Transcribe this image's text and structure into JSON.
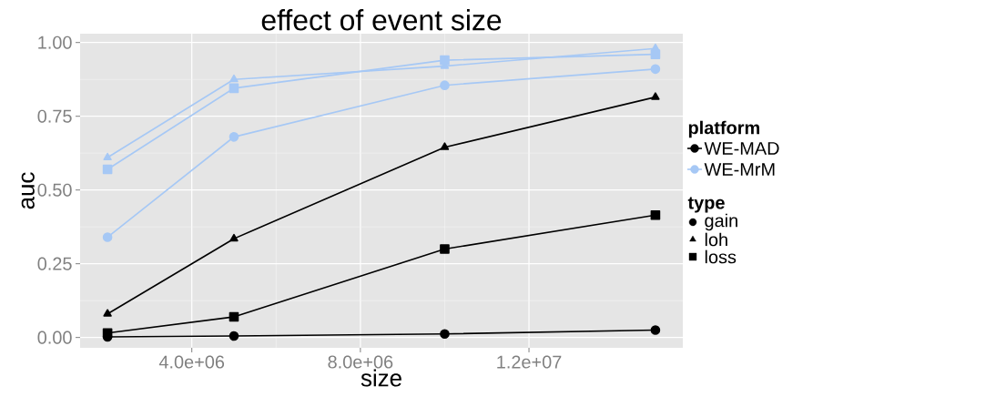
{
  "chart_data": {
    "type": "line",
    "title": "effect of event size",
    "xlabel": "size",
    "ylabel": "auc",
    "legend_title": "platform",
    "x": [
      2000000,
      5000000,
      10000000,
      15000000
    ],
    "series": [
      {
        "name": "WE-MAD",
        "color": "#000000",
        "marker": "circle",
        "values": [
          0.002,
          0.005,
          0.012,
          0.025
        ]
      },
      {
        "color": "#000000",
        "marker": "triangle",
        "values": [
          0.08,
          0.335,
          0.645,
          0.815
        ]
      },
      {
        "color": "#000000",
        "marker": "square",
        "values": [
          0.015,
          0.07,
          0.3,
          0.415
        ]
      },
      {
        "name": "WE-MrM",
        "color": "#a6c8f5",
        "marker": "circle",
        "values": [
          0.34,
          0.68,
          0.855,
          0.91
        ]
      },
      {
        "color": "#a6c8f5",
        "marker": "triangle",
        "values": [
          0.61,
          0.875,
          0.92,
          0.98
        ]
      },
      {
        "color": "#a6c8f5",
        "marker": "square",
        "values": [
          0.57,
          0.845,
          0.94,
          0.96
        ]
      }
    ],
    "annotations": [
      "type",
      "gain",
      "loh",
      "loss"
    ],
    "xlim": [
      1350000,
      15650000
    ],
    "ylim": [
      -0.035,
      1.03
    ],
    "xticks": [
      {
        "value": 4000000,
        "label": "4.0e+06"
      },
      {
        "value": 8000000,
        "label": "8.0e+06"
      },
      {
        "value": 12000000,
        "label": "1.2e+07"
      }
    ],
    "yticks": [
      {
        "value": 0,
        "label": "0.00"
      },
      {
        "value": 0.25,
        "label": "0.25"
      },
      {
        "value": 0.5,
        "label": "0.50"
      },
      {
        "value": 0.75,
        "label": "0.75"
      },
      {
        "value": 1,
        "label": "1.00"
      }
    ],
    "grid": true,
    "legend": "right",
    "line_style": "solid"
  }
}
